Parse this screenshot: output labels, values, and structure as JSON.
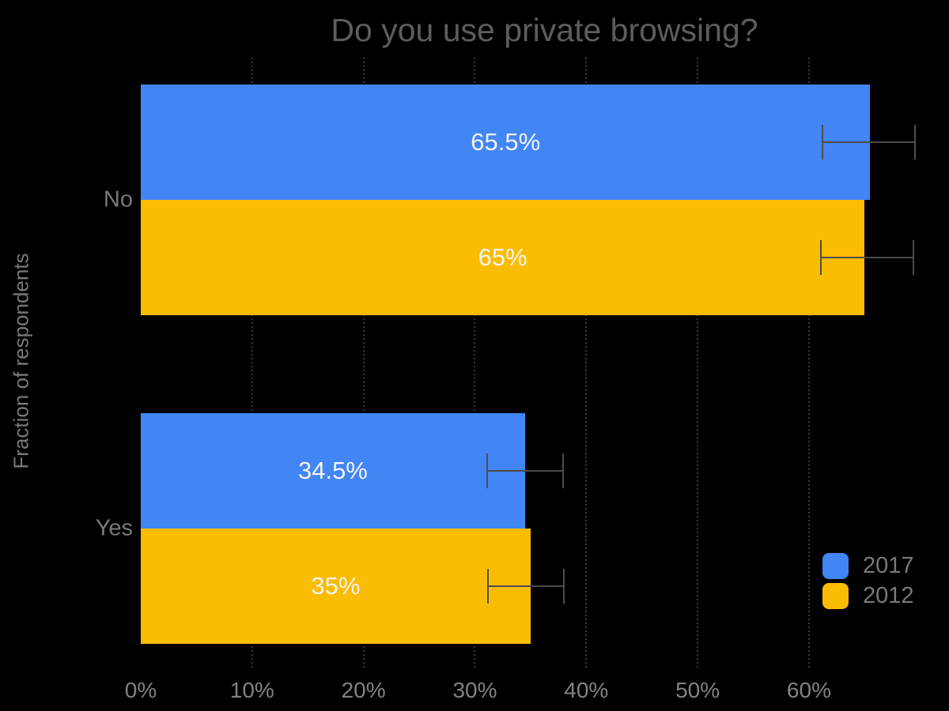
{
  "chart_data": {
    "type": "bar",
    "orientation": "horizontal",
    "title": "Do you use private browsing?",
    "ylabel": "Fraction of respondents",
    "xlabel": "",
    "categories": [
      "No",
      "Yes"
    ],
    "series": [
      {
        "name": "2017",
        "color": "#4285f4",
        "values": [
          65.5,
          34.5
        ],
        "labels": [
          "65.5%",
          "34.5%"
        ],
        "error_low": [
          61.2,
          31.1
        ],
        "error_high": [
          69.5,
          37.9
        ]
      },
      {
        "name": "2012",
        "color": "#fbbc04",
        "values": [
          65,
          35
        ],
        "labels": [
          "65%",
          "35%"
        ],
        "error_low": [
          61.1,
          31.2
        ],
        "error_high": [
          69.4,
          38.0
        ]
      }
    ],
    "x_ticks": [
      {
        "value": 0,
        "label": "0%"
      },
      {
        "value": 10,
        "label": "10%"
      },
      {
        "value": 20,
        "label": "20%"
      },
      {
        "value": 30,
        "label": "30%"
      },
      {
        "value": 40,
        "label": "40%"
      },
      {
        "value": 50,
        "label": "50%"
      },
      {
        "value": 60,
        "label": "60%"
      }
    ],
    "xlim": [
      0,
      72.5
    ],
    "grid": "dotted-vertical-only",
    "legend_position": "right-bottom",
    "colors": {
      "background": "#000000",
      "title_text": "#5a5d61",
      "axis_text": "#808285",
      "category_text": "#77797c",
      "legend_text": "#77797c",
      "bar_value_text": "#f4f4f4",
      "error_bar": "#4d4d4d",
      "gridline": "#3a3a3a"
    }
  }
}
